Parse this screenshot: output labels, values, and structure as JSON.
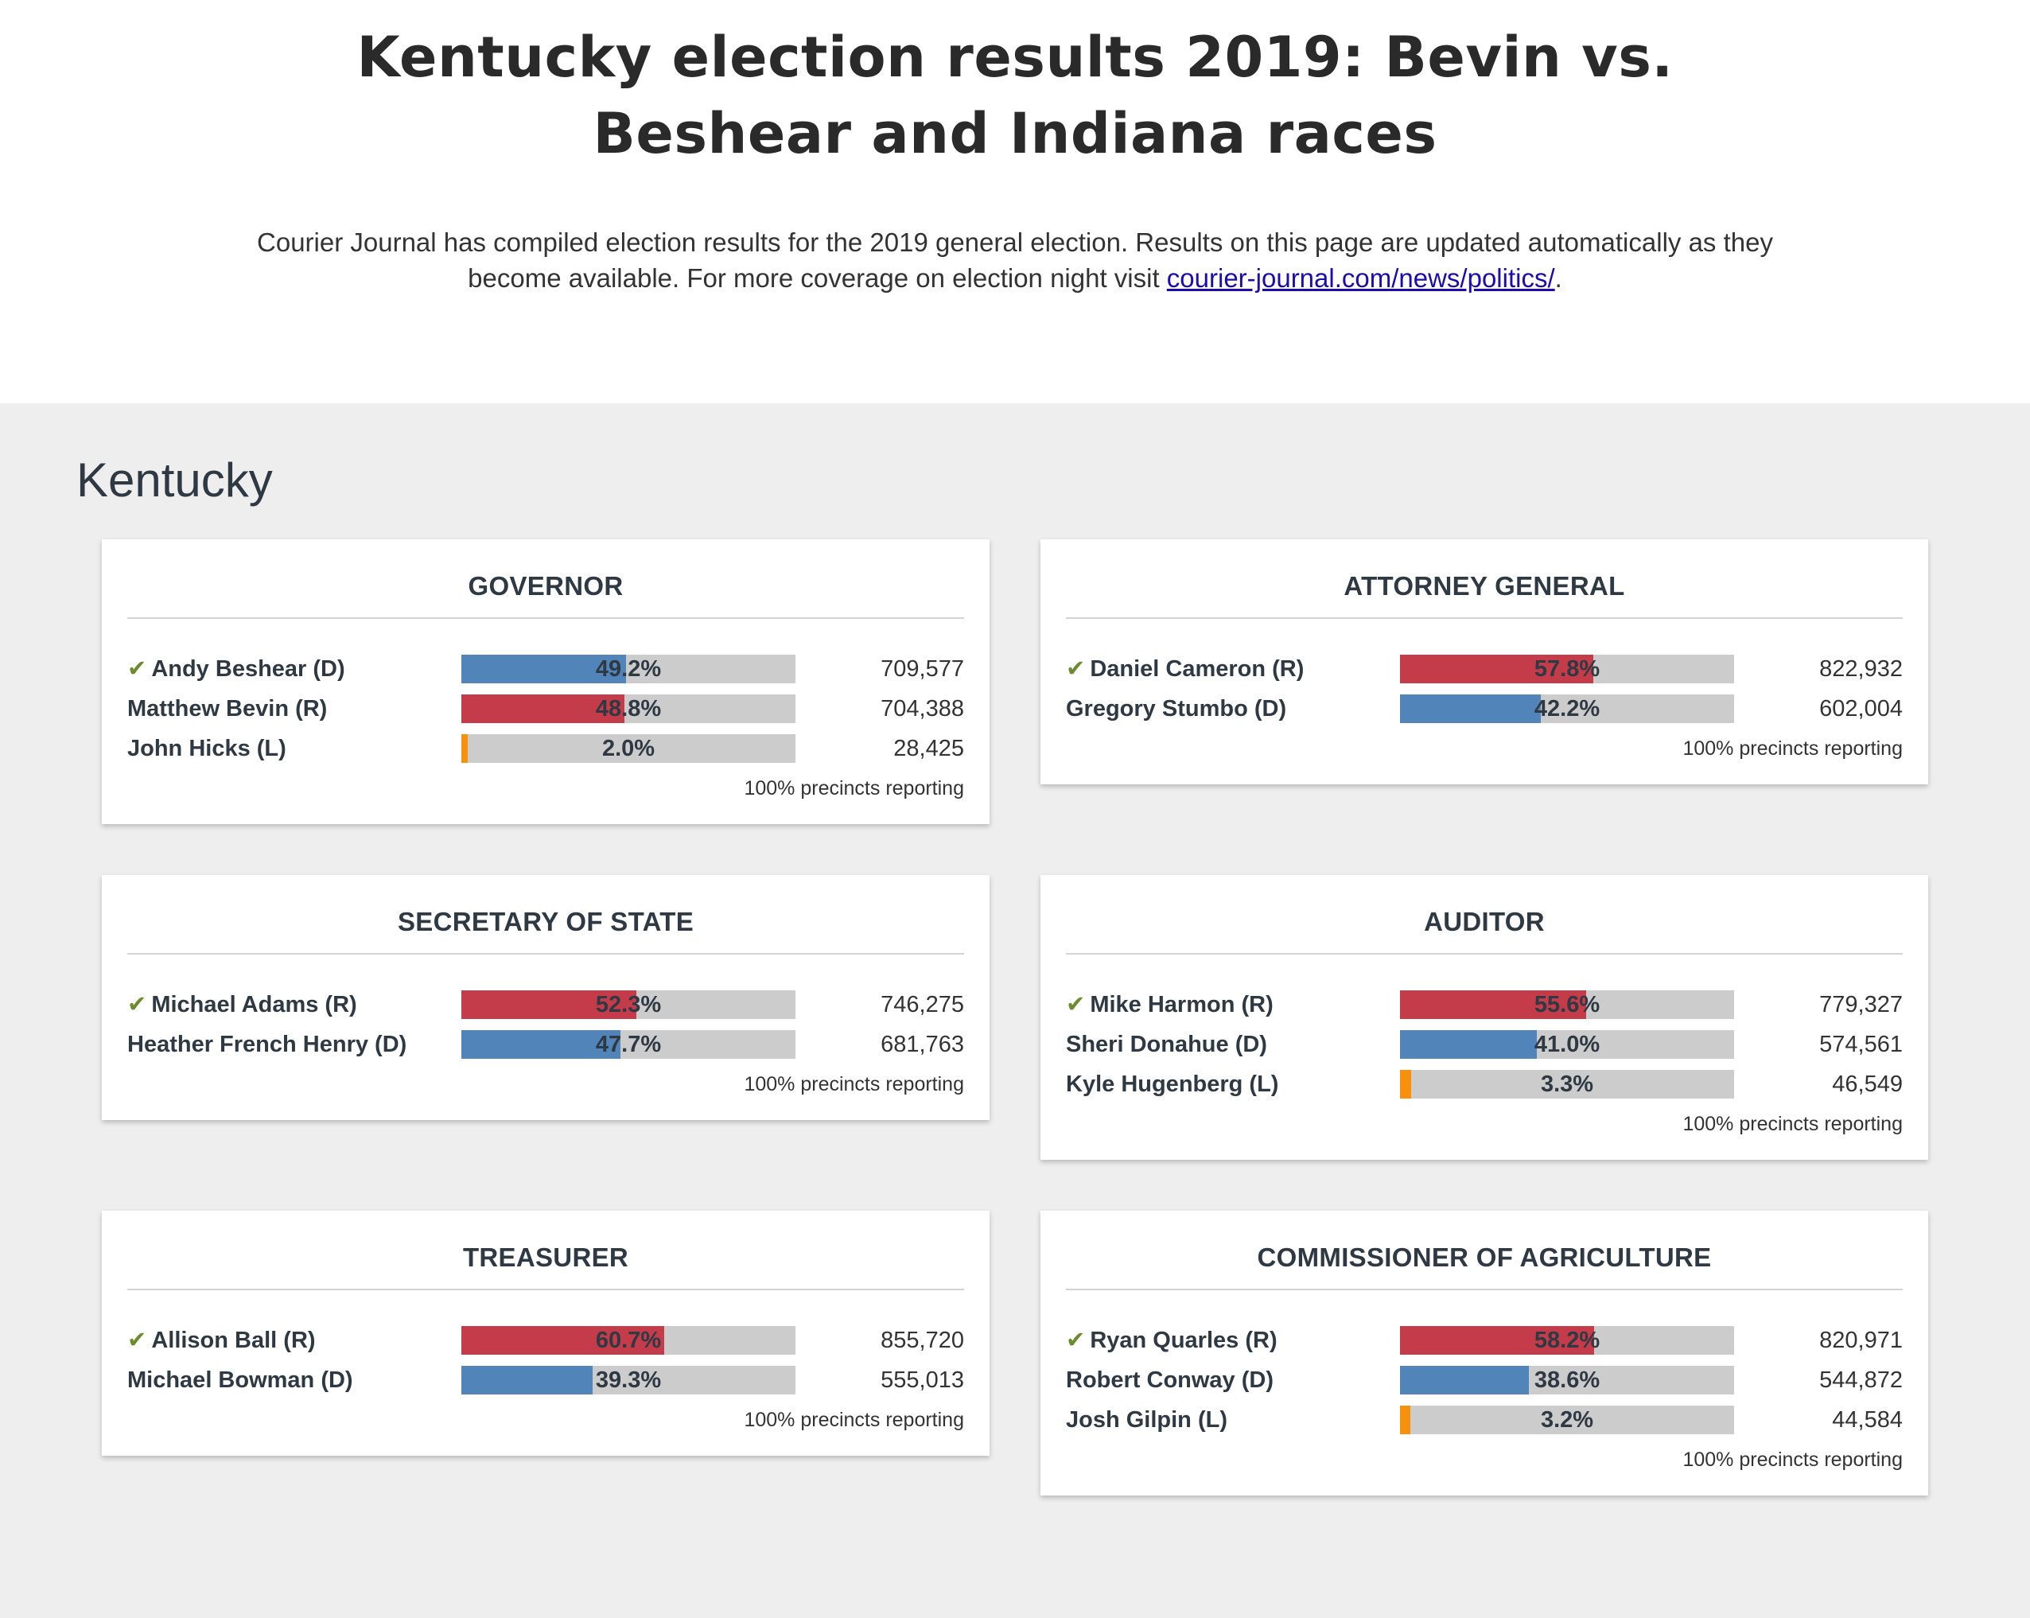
{
  "header": {
    "title": "Kentucky election results 2019: Bevin vs. Beshear and Indiana races",
    "intro_text": "Courier Journal has compiled election results for the 2019 general election. Results on this page are updated automatically as they become available. For more coverage on election night visit ",
    "intro_link": "courier-journal.com/news/politics/",
    "intro_end": "."
  },
  "colors": {
    "D": "#5184b8",
    "R": "#c43b4a",
    "L": "#f7900c",
    "winner_check": "#6d8b2f"
  },
  "state": {
    "title": "Kentucky",
    "reporting_label": "100% precincts reporting",
    "check_glyph": "✔",
    "races": [
      {
        "title": "GOVERNOR",
        "candidates": [
          {
            "name": "Andy Beshear (D)",
            "party": "D",
            "pct": 49.2,
            "pct_label": "49.2%",
            "votes": "709,577",
            "winner": true
          },
          {
            "name": "Matthew Bevin (R)",
            "party": "R",
            "pct": 48.8,
            "pct_label": "48.8%",
            "votes": "704,388",
            "winner": false
          },
          {
            "name": "John Hicks (L)",
            "party": "L",
            "pct": 2.0,
            "pct_label": "2.0%",
            "votes": "28,425",
            "winner": false
          }
        ]
      },
      {
        "title": "ATTORNEY GENERAL",
        "candidates": [
          {
            "name": "Daniel Cameron (R)",
            "party": "R",
            "pct": 57.8,
            "pct_label": "57.8%",
            "votes": "822,932",
            "winner": true
          },
          {
            "name": "Gregory Stumbo (D)",
            "party": "D",
            "pct": 42.2,
            "pct_label": "42.2%",
            "votes": "602,004",
            "winner": false
          }
        ]
      },
      {
        "title": "SECRETARY OF STATE",
        "candidates": [
          {
            "name": "Michael Adams (R)",
            "party": "R",
            "pct": 52.3,
            "pct_label": "52.3%",
            "votes": "746,275",
            "winner": true
          },
          {
            "name": "Heather French Henry (D)",
            "party": "D",
            "pct": 47.7,
            "pct_label": "47.7%",
            "votes": "681,763",
            "winner": false
          }
        ]
      },
      {
        "title": "AUDITOR",
        "candidates": [
          {
            "name": "Mike Harmon (R)",
            "party": "R",
            "pct": 55.6,
            "pct_label": "55.6%",
            "votes": "779,327",
            "winner": true
          },
          {
            "name": "Sheri Donahue (D)",
            "party": "D",
            "pct": 41.0,
            "pct_label": "41.0%",
            "votes": "574,561",
            "winner": false
          },
          {
            "name": "Kyle Hugenberg (L)",
            "party": "L",
            "pct": 3.3,
            "pct_label": "3.3%",
            "votes": "46,549",
            "winner": false
          }
        ]
      },
      {
        "title": "TREASURER",
        "candidates": [
          {
            "name": "Allison Ball (R)",
            "party": "R",
            "pct": 60.7,
            "pct_label": "60.7%",
            "votes": "855,720",
            "winner": true
          },
          {
            "name": "Michael Bowman (D)",
            "party": "D",
            "pct": 39.3,
            "pct_label": "39.3%",
            "votes": "555,013",
            "winner": false
          }
        ]
      },
      {
        "title": "COMMISSIONER OF AGRICULTURE",
        "candidates": [
          {
            "name": "Ryan Quarles (R)",
            "party": "R",
            "pct": 58.2,
            "pct_label": "58.2%",
            "votes": "820,971",
            "winner": true
          },
          {
            "name": "Robert Conway (D)",
            "party": "D",
            "pct": 38.6,
            "pct_label": "38.6%",
            "votes": "544,872",
            "winner": false
          },
          {
            "name": "Josh Gilpin (L)",
            "party": "L",
            "pct": 3.2,
            "pct_label": "3.2%",
            "votes": "44,584",
            "winner": false
          }
        ]
      }
    ]
  }
}
